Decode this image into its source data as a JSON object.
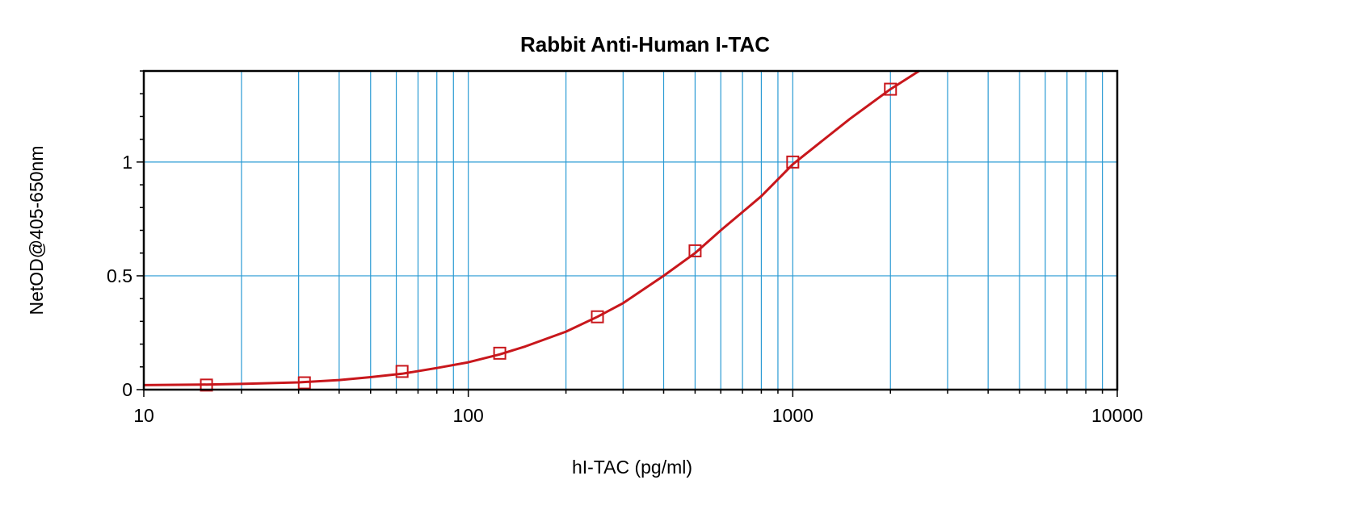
{
  "chart_data": {
    "type": "line",
    "title": "Rabbit Anti-Human I-TAC",
    "xlabel": "hI-TAC (pg/ml)",
    "ylabel": "NetOD@405-650nm",
    "xscale": "log",
    "xlim": [
      10,
      10000
    ],
    "ylim": [
      0,
      1.4
    ],
    "x_ticks": [
      10,
      100,
      1000,
      10000
    ],
    "x_tick_labels": [
      "10",
      "100",
      "1000",
      "10000"
    ],
    "y_ticks": [
      0,
      0.5,
      1
    ],
    "y_tick_labels": [
      "0",
      "0.5",
      "1"
    ],
    "grid": true,
    "series": [
      {
        "marker": "square",
        "x": [
          15.6,
          31.25,
          62.5,
          125,
          250,
          500,
          1000,
          2000
        ],
        "y": [
          0.02,
          0.03,
          0.08,
          0.16,
          0.32,
          0.61,
          1.0,
          1.32
        ]
      }
    ],
    "fit": {
      "x": [
        10,
        15,
        20,
        30,
        40,
        50,
        62.5,
        80,
        100,
        125,
        150,
        200,
        250,
        300,
        400,
        500,
        600,
        700,
        800,
        1000,
        1200,
        1500,
        2000,
        2450
      ],
      "y": [
        0.02,
        0.022,
        0.025,
        0.032,
        0.042,
        0.055,
        0.07,
        0.095,
        0.12,
        0.155,
        0.19,
        0.255,
        0.32,
        0.38,
        0.5,
        0.6,
        0.7,
        0.78,
        0.85,
        0.99,
        1.08,
        1.19,
        1.32,
        1.4
      ]
    },
    "colors": {
      "grid": "#2b9bd4",
      "series": "#c8171c",
      "frame": "#000000"
    }
  }
}
